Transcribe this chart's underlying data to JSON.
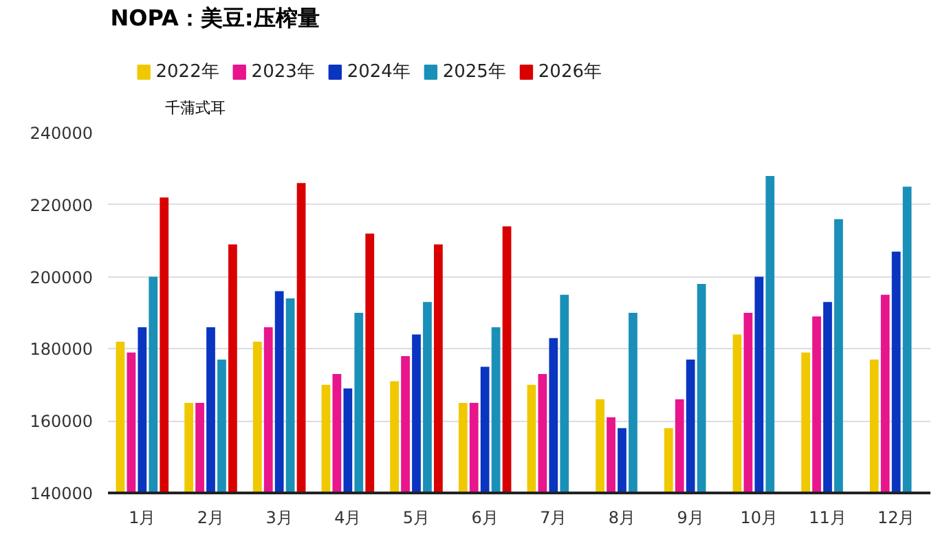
{
  "chart_data": {
    "type": "bar",
    "title": "NOPA：美豆:压榨量",
    "ylabel": "千蒲式耳",
    "categories": [
      "1月",
      "2月",
      "3月",
      "4月",
      "5月",
      "6月",
      "7月",
      "8月",
      "9月",
      "10月",
      "11月",
      "12月"
    ],
    "series": [
      {
        "name": "2022年",
        "color": "#f0c800",
        "values": [
          182000,
          165000,
          182000,
          170000,
          171000,
          165000,
          170000,
          166000,
          158000,
          184000,
          179000,
          177000
        ]
      },
      {
        "name": "2023年",
        "color": "#e8158c",
        "values": [
          179000,
          165000,
          186000,
          173000,
          178000,
          165000,
          173000,
          161000,
          166000,
          190000,
          189000,
          195000
        ]
      },
      {
        "name": "2024年",
        "color": "#0a35c0",
        "values": [
          186000,
          186000,
          196000,
          169000,
          184000,
          175000,
          183000,
          158000,
          177000,
          200000,
          193000,
          207000
        ]
      },
      {
        "name": "2025年",
        "color": "#1a90b8",
        "values": [
          200000,
          177000,
          194000,
          190000,
          193000,
          186000,
          195000,
          190000,
          198000,
          228000,
          216000,
          225000
        ]
      },
      {
        "name": "2026年",
        "color": "#d90000",
        "values": [
          222000,
          209000,
          226000,
          212000,
          209000,
          214000,
          null,
          null,
          null,
          null,
          null,
          null
        ]
      }
    ],
    "ylim": [
      140000,
      240000
    ],
    "yticks": [
      140000,
      160000,
      180000,
      200000,
      220000,
      240000
    ],
    "grid": "y",
    "legend": "top left"
  }
}
